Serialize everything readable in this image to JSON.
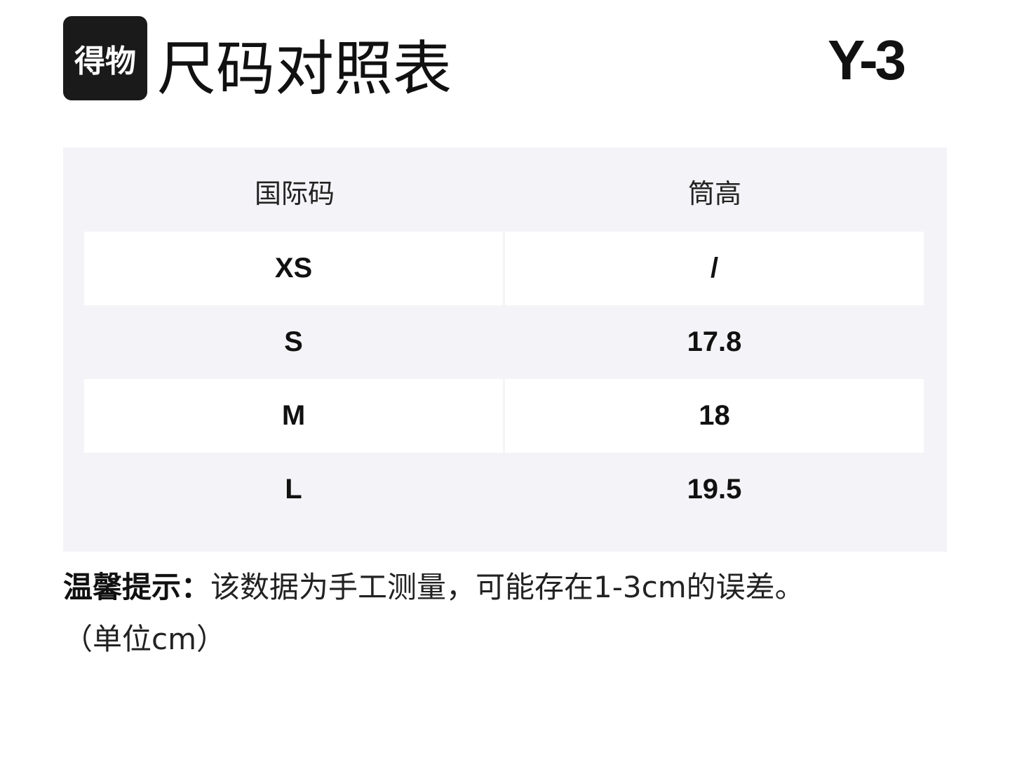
{
  "logo": "得物",
  "title": "尺码对照表",
  "brand": "Y-3",
  "table": {
    "headers": [
      "国际码",
      "筒高"
    ],
    "rows": [
      [
        "XS",
        "/"
      ],
      [
        "S",
        "17.8"
      ],
      [
        "M",
        "18"
      ],
      [
        "L",
        "19.5"
      ]
    ]
  },
  "note": {
    "label": "温馨提示：",
    "text": "该数据为手工测量，可能存在1-3cm的误差。",
    "unit": "（单位cm）"
  }
}
